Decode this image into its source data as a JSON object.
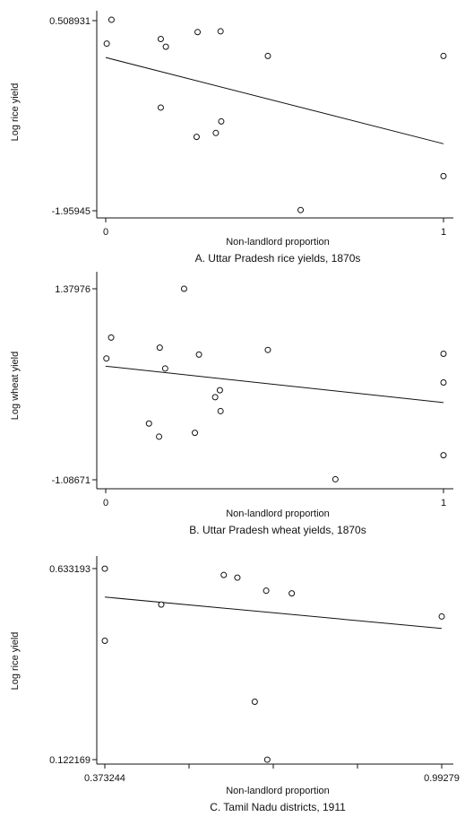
{
  "chart_data": [
    {
      "type": "scatter",
      "caption": "A. Uttar Pradesh rice yields, 1870s",
      "xlabel": "Non-landlord proportion",
      "ylabel": "Log rice yield",
      "x_tick_labels": [
        "0",
        "1"
      ],
      "y_tick_labels": [
        "-1.95945",
        "0.508931"
      ],
      "xlim": [
        -0.01,
        1.01
      ],
      "ylim": [
        -1.97,
        0.62
      ],
      "points": [
        {
          "x": 0.003,
          "y": 0.21
        },
        {
          "x": 0.017,
          "y": 0.52
        },
        {
          "x": 0.163,
          "y": 0.27
        },
        {
          "x": 0.178,
          "y": 0.17
        },
        {
          "x": 0.163,
          "y": -0.62
        },
        {
          "x": 0.272,
          "y": 0.36
        },
        {
          "x": 0.34,
          "y": 0.37
        },
        {
          "x": 0.269,
          "y": -1.0
        },
        {
          "x": 0.326,
          "y": -0.95
        },
        {
          "x": 0.342,
          "y": -0.8
        },
        {
          "x": 0.48,
          "y": 0.05
        },
        {
          "x": 0.577,
          "y": -1.95
        },
        {
          "x": 1.0,
          "y": 0.05
        },
        {
          "x": 1.0,
          "y": -1.51
        }
      ],
      "fit_line": [
        [
          0.0,
          0.03
        ],
        [
          1.0,
          -1.09
        ]
      ]
    },
    {
      "type": "scatter",
      "caption": "B. Uttar Pradesh wheat yields, 1870s",
      "xlabel": "Non-landlord proportion",
      "ylabel": "Log wheat yield",
      "x_tick_labels": [
        "0",
        "1"
      ],
      "y_tick_labels": [
        "-1.08671",
        "1.37976"
      ],
      "xlim": [
        -0.01,
        1.01
      ],
      "ylim": [
        -1.12,
        1.45
      ],
      "points": [
        {
          "x": 0.016,
          "y": 0.75
        },
        {
          "x": 0.002,
          "y": 0.48
        },
        {
          "x": 0.16,
          "y": 0.62
        },
        {
          "x": 0.232,
          "y": 1.38
        },
        {
          "x": 0.276,
          "y": 0.53
        },
        {
          "x": 0.176,
          "y": 0.35
        },
        {
          "x": 0.128,
          "y": -0.36
        },
        {
          "x": 0.158,
          "y": -0.53
        },
        {
          "x": 0.264,
          "y": -0.48
        },
        {
          "x": 0.324,
          "y": -0.02
        },
        {
          "x": 0.338,
          "y": 0.07
        },
        {
          "x": 0.34,
          "y": -0.2
        },
        {
          "x": 0.48,
          "y": 0.59
        },
        {
          "x": 0.68,
          "y": -1.08
        },
        {
          "x": 1.0,
          "y": 0.54
        },
        {
          "x": 1.0,
          "y": 0.17
        },
        {
          "x": 1.0,
          "y": -0.77
        }
      ],
      "fit_line": [
        [
          0.0,
          0.38
        ],
        [
          1.0,
          -0.09
        ]
      ]
    },
    {
      "type": "scatter",
      "caption": "C. Tamil Nadu districts, 1911",
      "xlabel": "Non-landlord proportion",
      "ylabel": "Log rice yield",
      "x_tick_labels": [
        "0.373244",
        "0.99279"
      ],
      "y_tick_labels": [
        "0.122169",
        "0.633193"
      ],
      "xlim": [
        0.3712,
        0.9948
      ],
      "ylim": [
        0.115,
        0.655
      ],
      "points": [
        {
          "x": 0.373244,
          "y": 0.633
        },
        {
          "x": 0.373244,
          "y": 0.44
        },
        {
          "x": 0.477,
          "y": 0.537
        },
        {
          "x": 0.592,
          "y": 0.616
        },
        {
          "x": 0.617,
          "y": 0.609
        },
        {
          "x": 0.649,
          "y": 0.277
        },
        {
          "x": 0.672,
          "y": 0.122
        },
        {
          "x": 0.67,
          "y": 0.574
        },
        {
          "x": 0.717,
          "y": 0.567
        },
        {
          "x": 0.99279,
          "y": 0.505
        }
      ],
      "fit_line": [
        [
          0.373244,
          0.557
        ],
        [
          0.99279,
          0.473
        ]
      ]
    }
  ]
}
